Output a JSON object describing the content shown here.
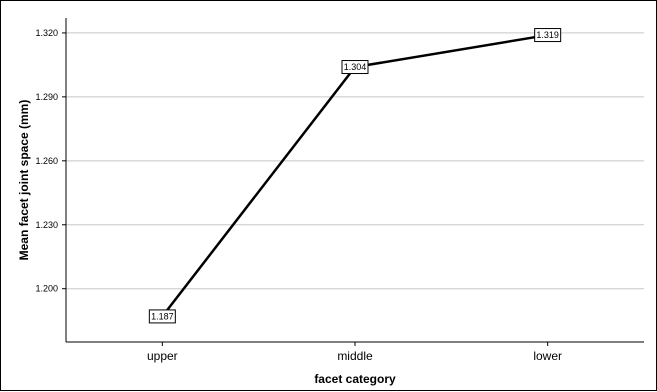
{
  "chart_data": {
    "type": "line",
    "categories": [
      "upper",
      "middle",
      "lower"
    ],
    "values": [
      1.187,
      1.304,
      1.319
    ],
    "data_labels": [
      "1.187",
      "1.304",
      "1.319"
    ],
    "xlabel": "facet category",
    "ylabel": "Mean facet joint space (mm)",
    "yticks": [
      1.2,
      1.23,
      1.26,
      1.29,
      1.32
    ],
    "ytick_labels": [
      "1.200",
      "1.230",
      "1.260",
      "1.290",
      "1.320"
    ],
    "ylim": [
      1.175,
      1.327
    ],
    "grid": "horizontal",
    "line_color": "#000000",
    "grid_color": "#c8c8c8"
  }
}
